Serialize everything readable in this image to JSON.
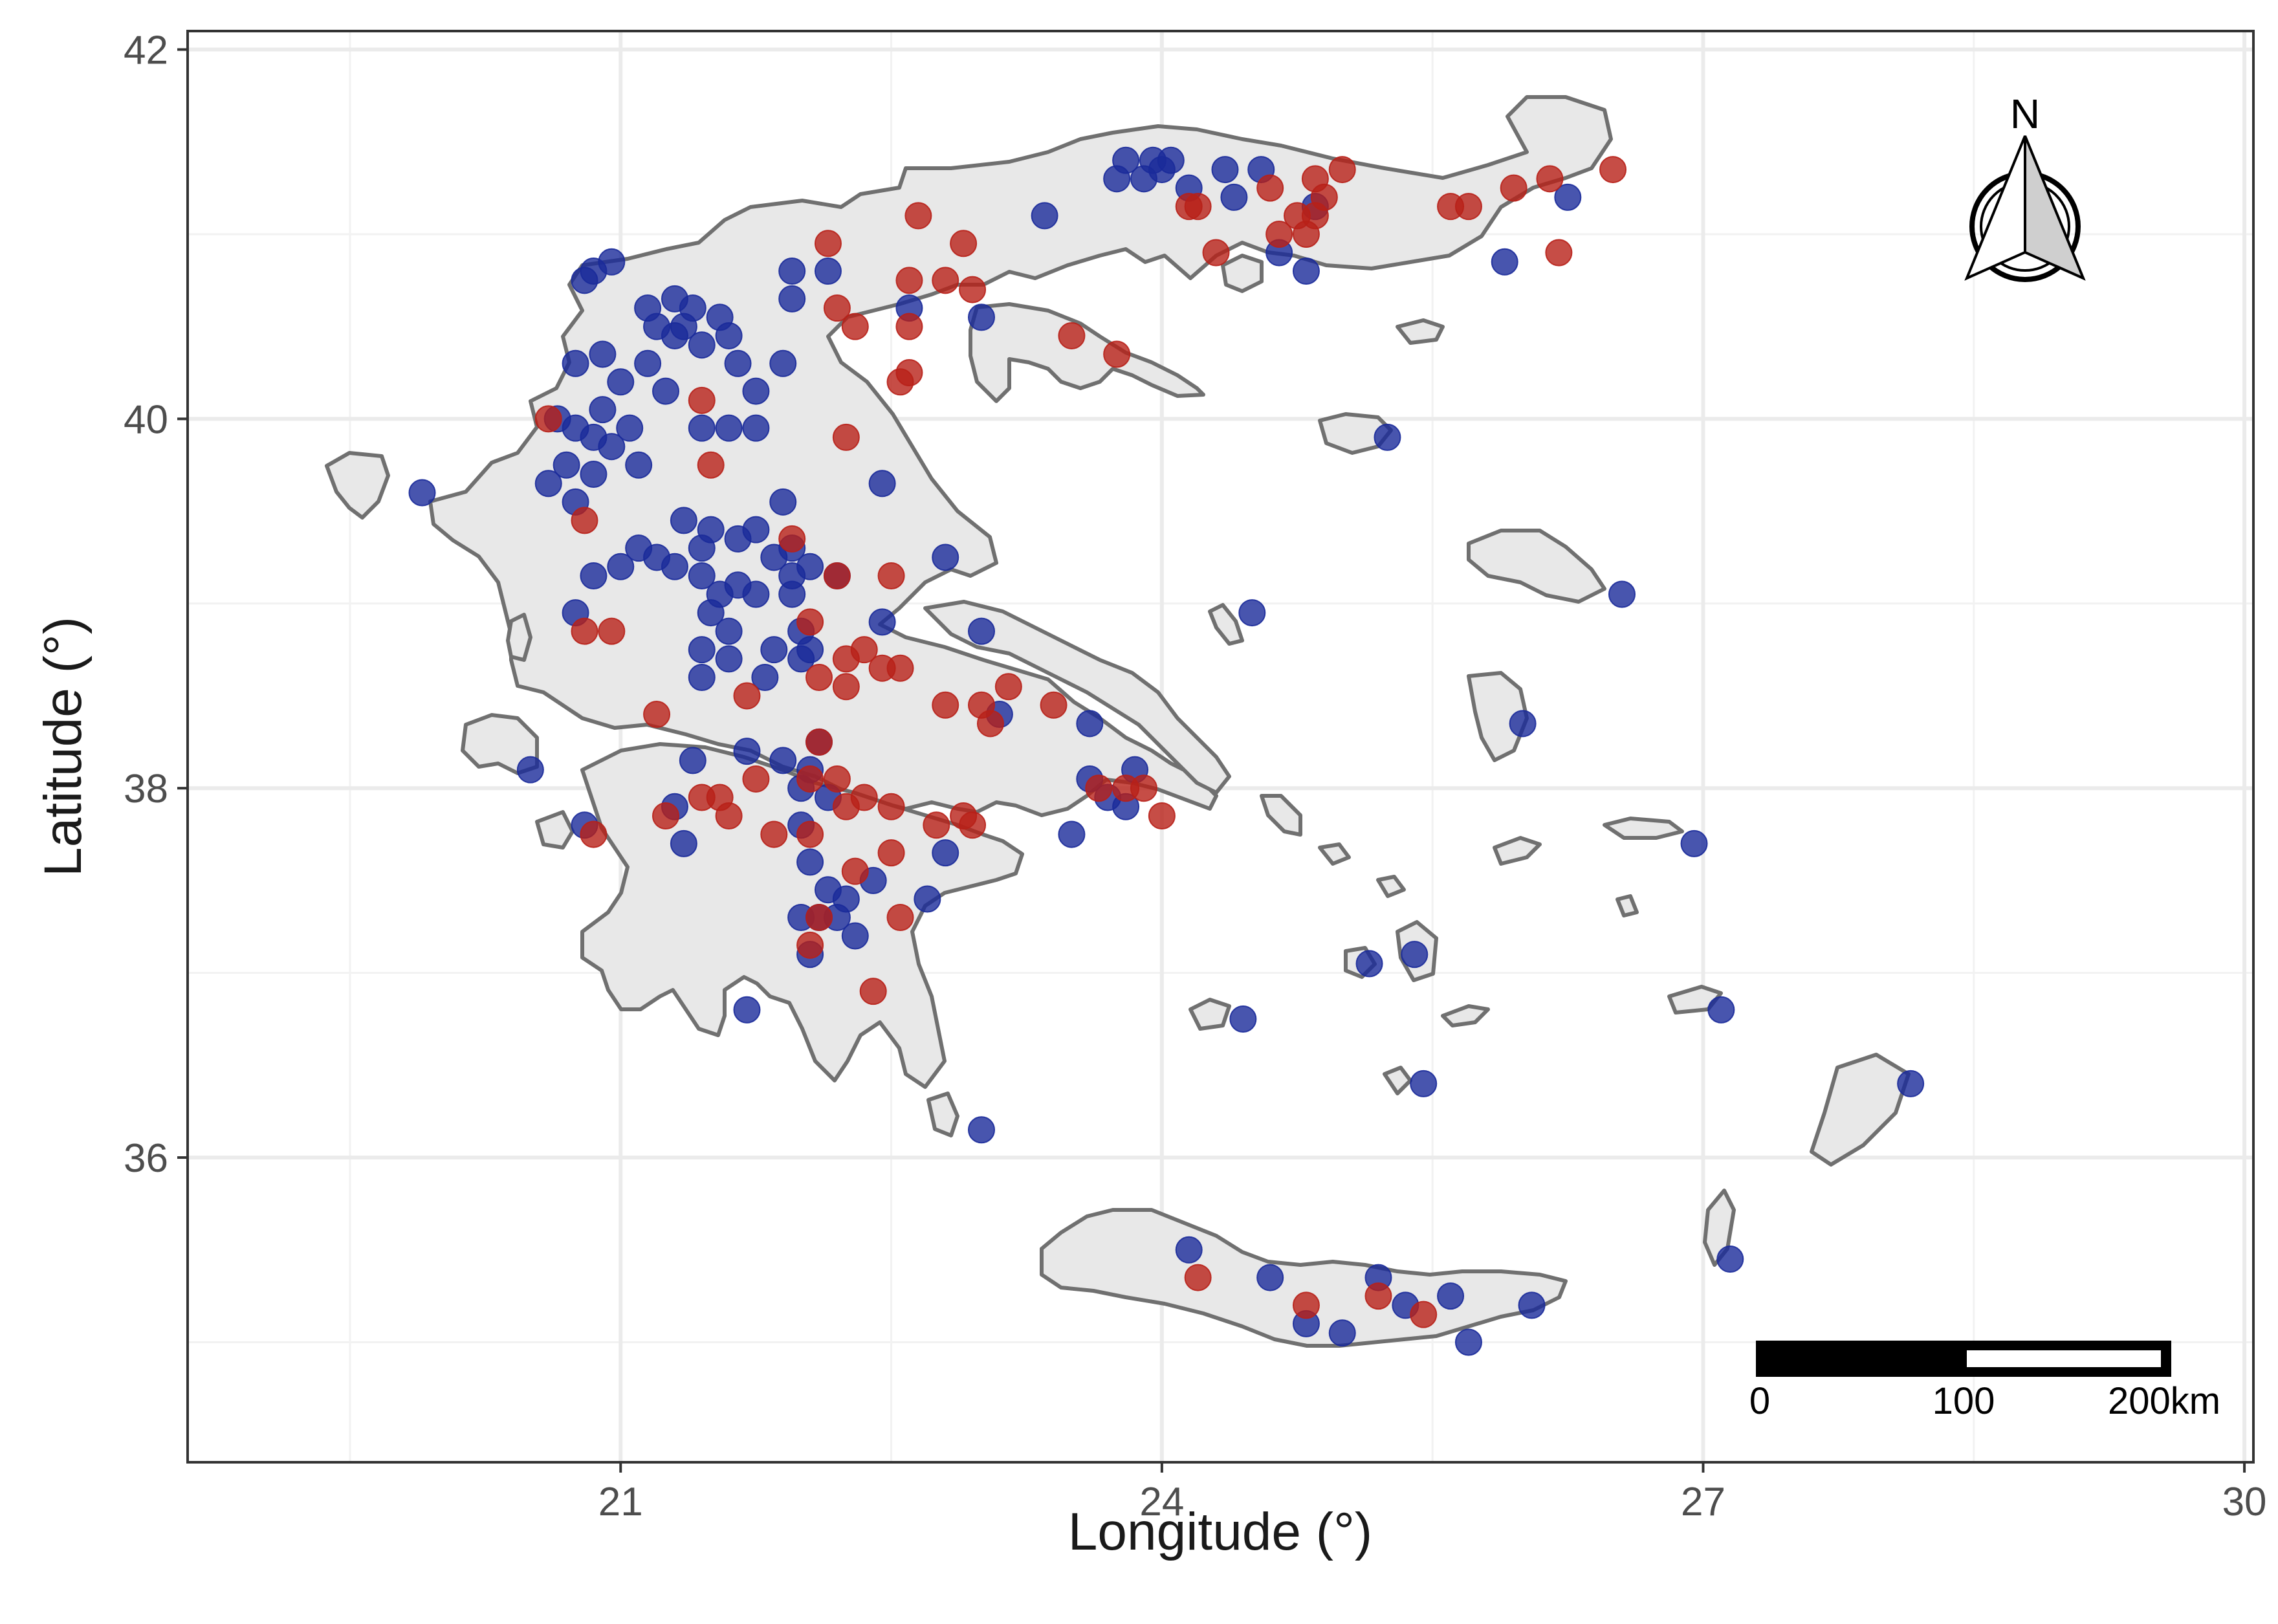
{
  "chart_data": {
    "type": "scatter",
    "xlabel": "Longitude (°)",
    "ylabel": "Latitude (°)",
    "xlim": [
      18.6,
      30.05
    ],
    "ylim": [
      34.35,
      42.1
    ],
    "x_ticks": [
      21,
      24,
      27,
      30
    ],
    "y_ticks": [
      36,
      38,
      40,
      42
    ],
    "x_tick_labels": [
      "21",
      "24",
      "27",
      "30"
    ],
    "y_tick_labels": [
      "36",
      "38",
      "40",
      "42"
    ],
    "grid": true,
    "background": "gray land on white",
    "colors": {
      "blue": "#1a2a9a",
      "red": "#b82018",
      "land_fill": "#e8e8e8",
      "coast": "#707070"
    },
    "north_arrow": {
      "label": "N",
      "placement": "top-right"
    },
    "scale_bar": {
      "labels": [
        "0",
        "100",
        "200km"
      ],
      "placement": "bottom-right"
    },
    "series": [
      {
        "color": "blue",
        "points": [
          [
            19.9,
            39.6
          ],
          [
            20.5,
            38.1
          ],
          [
            20.8,
            37.8
          ],
          [
            20.75,
            38.95
          ],
          [
            20.8,
            40.75
          ],
          [
            20.85,
            40.8
          ],
          [
            20.95,
            40.85
          ],
          [
            21.15,
            40.6
          ],
          [
            21.2,
            40.5
          ],
          [
            21.3,
            40.65
          ],
          [
            21.4,
            40.6
          ],
          [
            21.35,
            40.5
          ],
          [
            20.9,
            40.35
          ],
          [
            21.0,
            40.2
          ],
          [
            21.15,
            40.3
          ],
          [
            21.25,
            40.15
          ],
          [
            21.3,
            40.45
          ],
          [
            21.45,
            40.4
          ],
          [
            21.55,
            40.55
          ],
          [
            21.6,
            40.45
          ],
          [
            21.65,
            40.3
          ],
          [
            21.75,
            40.15
          ],
          [
            20.75,
            40.3
          ],
          [
            20.65,
            40.0
          ],
          [
            20.9,
            40.05
          ],
          [
            21.05,
            39.95
          ],
          [
            20.75,
            39.95
          ],
          [
            20.85,
            39.9
          ],
          [
            20.95,
            39.85
          ],
          [
            21.1,
            39.75
          ],
          [
            20.7,
            39.75
          ],
          [
            20.6,
            39.65
          ],
          [
            20.75,
            39.55
          ],
          [
            20.85,
            39.7
          ],
          [
            21.45,
            39.95
          ],
          [
            21.6,
            39.95
          ],
          [
            21.75,
            39.95
          ],
          [
            21.9,
            40.3
          ],
          [
            21.95,
            40.65
          ],
          [
            21.95,
            40.8
          ],
          [
            22.15,
            40.8
          ],
          [
            22.6,
            40.6
          ],
          [
            23.0,
            40.55
          ],
          [
            20.85,
            39.15
          ],
          [
            21.0,
            39.2
          ],
          [
            21.1,
            39.3
          ],
          [
            21.2,
            39.25
          ],
          [
            21.3,
            39.2
          ],
          [
            21.35,
            39.45
          ],
          [
            21.45,
            39.3
          ],
          [
            21.5,
            39.4
          ],
          [
            21.45,
            39.15
          ],
          [
            21.55,
            39.05
          ],
          [
            21.65,
            39.35
          ],
          [
            21.75,
            39.4
          ],
          [
            21.5,
            38.95
          ],
          [
            21.6,
            38.85
          ],
          [
            21.65,
            39.1
          ],
          [
            21.75,
            39.05
          ],
          [
            21.85,
            39.25
          ],
          [
            21.95,
            39.3
          ],
          [
            21.95,
            39.15
          ],
          [
            22.05,
            39.2
          ],
          [
            21.95,
            39.05
          ],
          [
            22.0,
            38.85
          ],
          [
            22.05,
            38.75
          ],
          [
            22.0,
            38.7
          ],
          [
            21.85,
            38.75
          ],
          [
            21.8,
            38.6
          ],
          [
            21.6,
            38.7
          ],
          [
            21.45,
            38.75
          ],
          [
            21.45,
            38.6
          ],
          [
            21.9,
            39.55
          ],
          [
            22.2,
            39.15
          ],
          [
            22.45,
            38.9
          ],
          [
            22.45,
            39.65
          ],
          [
            22.8,
            39.25
          ],
          [
            23.0,
            38.85
          ],
          [
            21.4,
            38.15
          ],
          [
            21.3,
            37.9
          ],
          [
            21.35,
            37.7
          ],
          [
            21.7,
            38.2
          ],
          [
            21.9,
            38.15
          ],
          [
            22.0,
            38.0
          ],
          [
            22.05,
            38.1
          ],
          [
            22.1,
            38.25
          ],
          [
            22.15,
            37.95
          ],
          [
            22.0,
            37.8
          ],
          [
            22.05,
            37.6
          ],
          [
            22.15,
            37.45
          ],
          [
            22.25,
            37.4
          ],
          [
            22.4,
            37.5
          ],
          [
            22.0,
            37.3
          ],
          [
            22.1,
            37.3
          ],
          [
            22.2,
            37.3
          ],
          [
            22.3,
            37.2
          ],
          [
            22.05,
            37.1
          ],
          [
            22.7,
            37.4
          ],
          [
            22.8,
            37.65
          ],
          [
            21.7,
            36.8
          ],
          [
            23.0,
            36.15
          ],
          [
            23.1,
            38.4
          ],
          [
            23.5,
            37.75
          ],
          [
            23.6,
            38.35
          ],
          [
            23.6,
            38.05
          ],
          [
            23.7,
            37.95
          ],
          [
            23.8,
            37.9
          ],
          [
            23.85,
            38.1
          ],
          [
            23.35,
            41.1
          ],
          [
            23.8,
            41.4
          ],
          [
            23.75,
            41.3
          ],
          [
            23.9,
            41.3
          ],
          [
            23.95,
            41.4
          ],
          [
            24.0,
            41.35
          ],
          [
            24.05,
            41.4
          ],
          [
            24.15,
            41.25
          ],
          [
            24.35,
            41.35
          ],
          [
            24.4,
            41.2
          ],
          [
            24.55,
            41.35
          ],
          [
            24.85,
            41.15
          ],
          [
            24.65,
            40.9
          ],
          [
            24.8,
            40.8
          ],
          [
            25.25,
            39.9
          ],
          [
            24.5,
            38.95
          ],
          [
            26.25,
            41.2
          ],
          [
            25.9,
            40.85
          ],
          [
            26.55,
            39.05
          ],
          [
            26.0,
            38.35
          ],
          [
            26.95,
            37.7
          ],
          [
            25.15,
            37.05
          ],
          [
            25.4,
            37.1
          ],
          [
            24.45,
            36.75
          ],
          [
            25.45,
            36.4
          ],
          [
            27.1,
            36.8
          ],
          [
            28.15,
            36.4
          ],
          [
            27.15,
            35.45
          ],
          [
            24.15,
            35.5
          ],
          [
            24.6,
            35.35
          ],
          [
            24.8,
            35.1
          ],
          [
            25.0,
            35.05
          ],
          [
            25.2,
            35.35
          ],
          [
            25.35,
            35.2
          ],
          [
            25.6,
            35.25
          ],
          [
            25.7,
            35.0
          ],
          [
            26.05,
            35.2
          ]
        ]
      },
      {
        "color": "red",
        "points": [
          [
            20.6,
            40.0
          ],
          [
            20.8,
            39.45
          ],
          [
            20.8,
            38.85
          ],
          [
            20.95,
            38.85
          ],
          [
            20.85,
            37.75
          ],
          [
            21.2,
            38.4
          ],
          [
            21.25,
            37.85
          ],
          [
            21.45,
            40.1
          ],
          [
            21.5,
            39.75
          ],
          [
            22.15,
            40.95
          ],
          [
            22.2,
            40.6
          ],
          [
            22.3,
            40.5
          ],
          [
            22.6,
            40.75
          ],
          [
            22.6,
            40.5
          ],
          [
            22.55,
            40.2
          ],
          [
            22.6,
            40.25
          ],
          [
            22.65,
            41.1
          ],
          [
            22.8,
            40.75
          ],
          [
            22.9,
            40.95
          ],
          [
            22.95,
            40.7
          ],
          [
            22.25,
            39.9
          ],
          [
            21.95,
            39.35
          ],
          [
            22.2,
            39.15
          ],
          [
            22.05,
            38.9
          ],
          [
            22.5,
            39.15
          ],
          [
            22.25,
            38.7
          ],
          [
            22.35,
            38.75
          ],
          [
            22.45,
            38.65
          ],
          [
            22.55,
            38.65
          ],
          [
            22.25,
            38.55
          ],
          [
            22.1,
            38.6
          ],
          [
            21.7,
            38.5
          ],
          [
            21.45,
            37.95
          ],
          [
            21.55,
            37.95
          ],
          [
            21.6,
            37.85
          ],
          [
            21.75,
            38.05
          ],
          [
            21.85,
            37.75
          ],
          [
            22.05,
            38.05
          ],
          [
            22.1,
            38.25
          ],
          [
            22.2,
            38.05
          ],
          [
            22.05,
            37.75
          ],
          [
            22.25,
            37.9
          ],
          [
            22.35,
            37.95
          ],
          [
            22.5,
            37.9
          ],
          [
            22.3,
            37.55
          ],
          [
            22.5,
            37.65
          ],
          [
            22.55,
            37.3
          ],
          [
            22.1,
            37.3
          ],
          [
            22.05,
            37.15
          ],
          [
            22.4,
            36.9
          ],
          [
            22.75,
            37.8
          ],
          [
            22.9,
            37.85
          ],
          [
            22.95,
            37.8
          ],
          [
            22.8,
            38.45
          ],
          [
            23.0,
            38.45
          ],
          [
            23.05,
            38.35
          ],
          [
            23.15,
            38.55
          ],
          [
            23.4,
            38.45
          ],
          [
            23.5,
            40.45
          ],
          [
            23.75,
            40.35
          ],
          [
            23.65,
            38.0
          ],
          [
            23.8,
            38.0
          ],
          [
            23.9,
            38.0
          ],
          [
            24.0,
            37.85
          ],
          [
            24.15,
            41.15
          ],
          [
            24.2,
            41.15
          ],
          [
            24.3,
            40.9
          ],
          [
            24.6,
            41.25
          ],
          [
            24.85,
            41.3
          ],
          [
            24.9,
            41.2
          ],
          [
            24.85,
            41.1
          ],
          [
            24.8,
            41.0
          ],
          [
            24.75,
            41.1
          ],
          [
            24.65,
            41.0
          ],
          [
            25.0,
            41.35
          ],
          [
            25.6,
            41.15
          ],
          [
            25.7,
            41.15
          ],
          [
            25.95,
            41.25
          ],
          [
            26.15,
            41.3
          ],
          [
            26.5,
            41.35
          ],
          [
            26.2,
            40.9
          ],
          [
            24.2,
            35.35
          ],
          [
            24.8,
            35.2
          ],
          [
            25.2,
            35.25
          ],
          [
            25.45,
            35.15
          ]
        ]
      }
    ]
  }
}
